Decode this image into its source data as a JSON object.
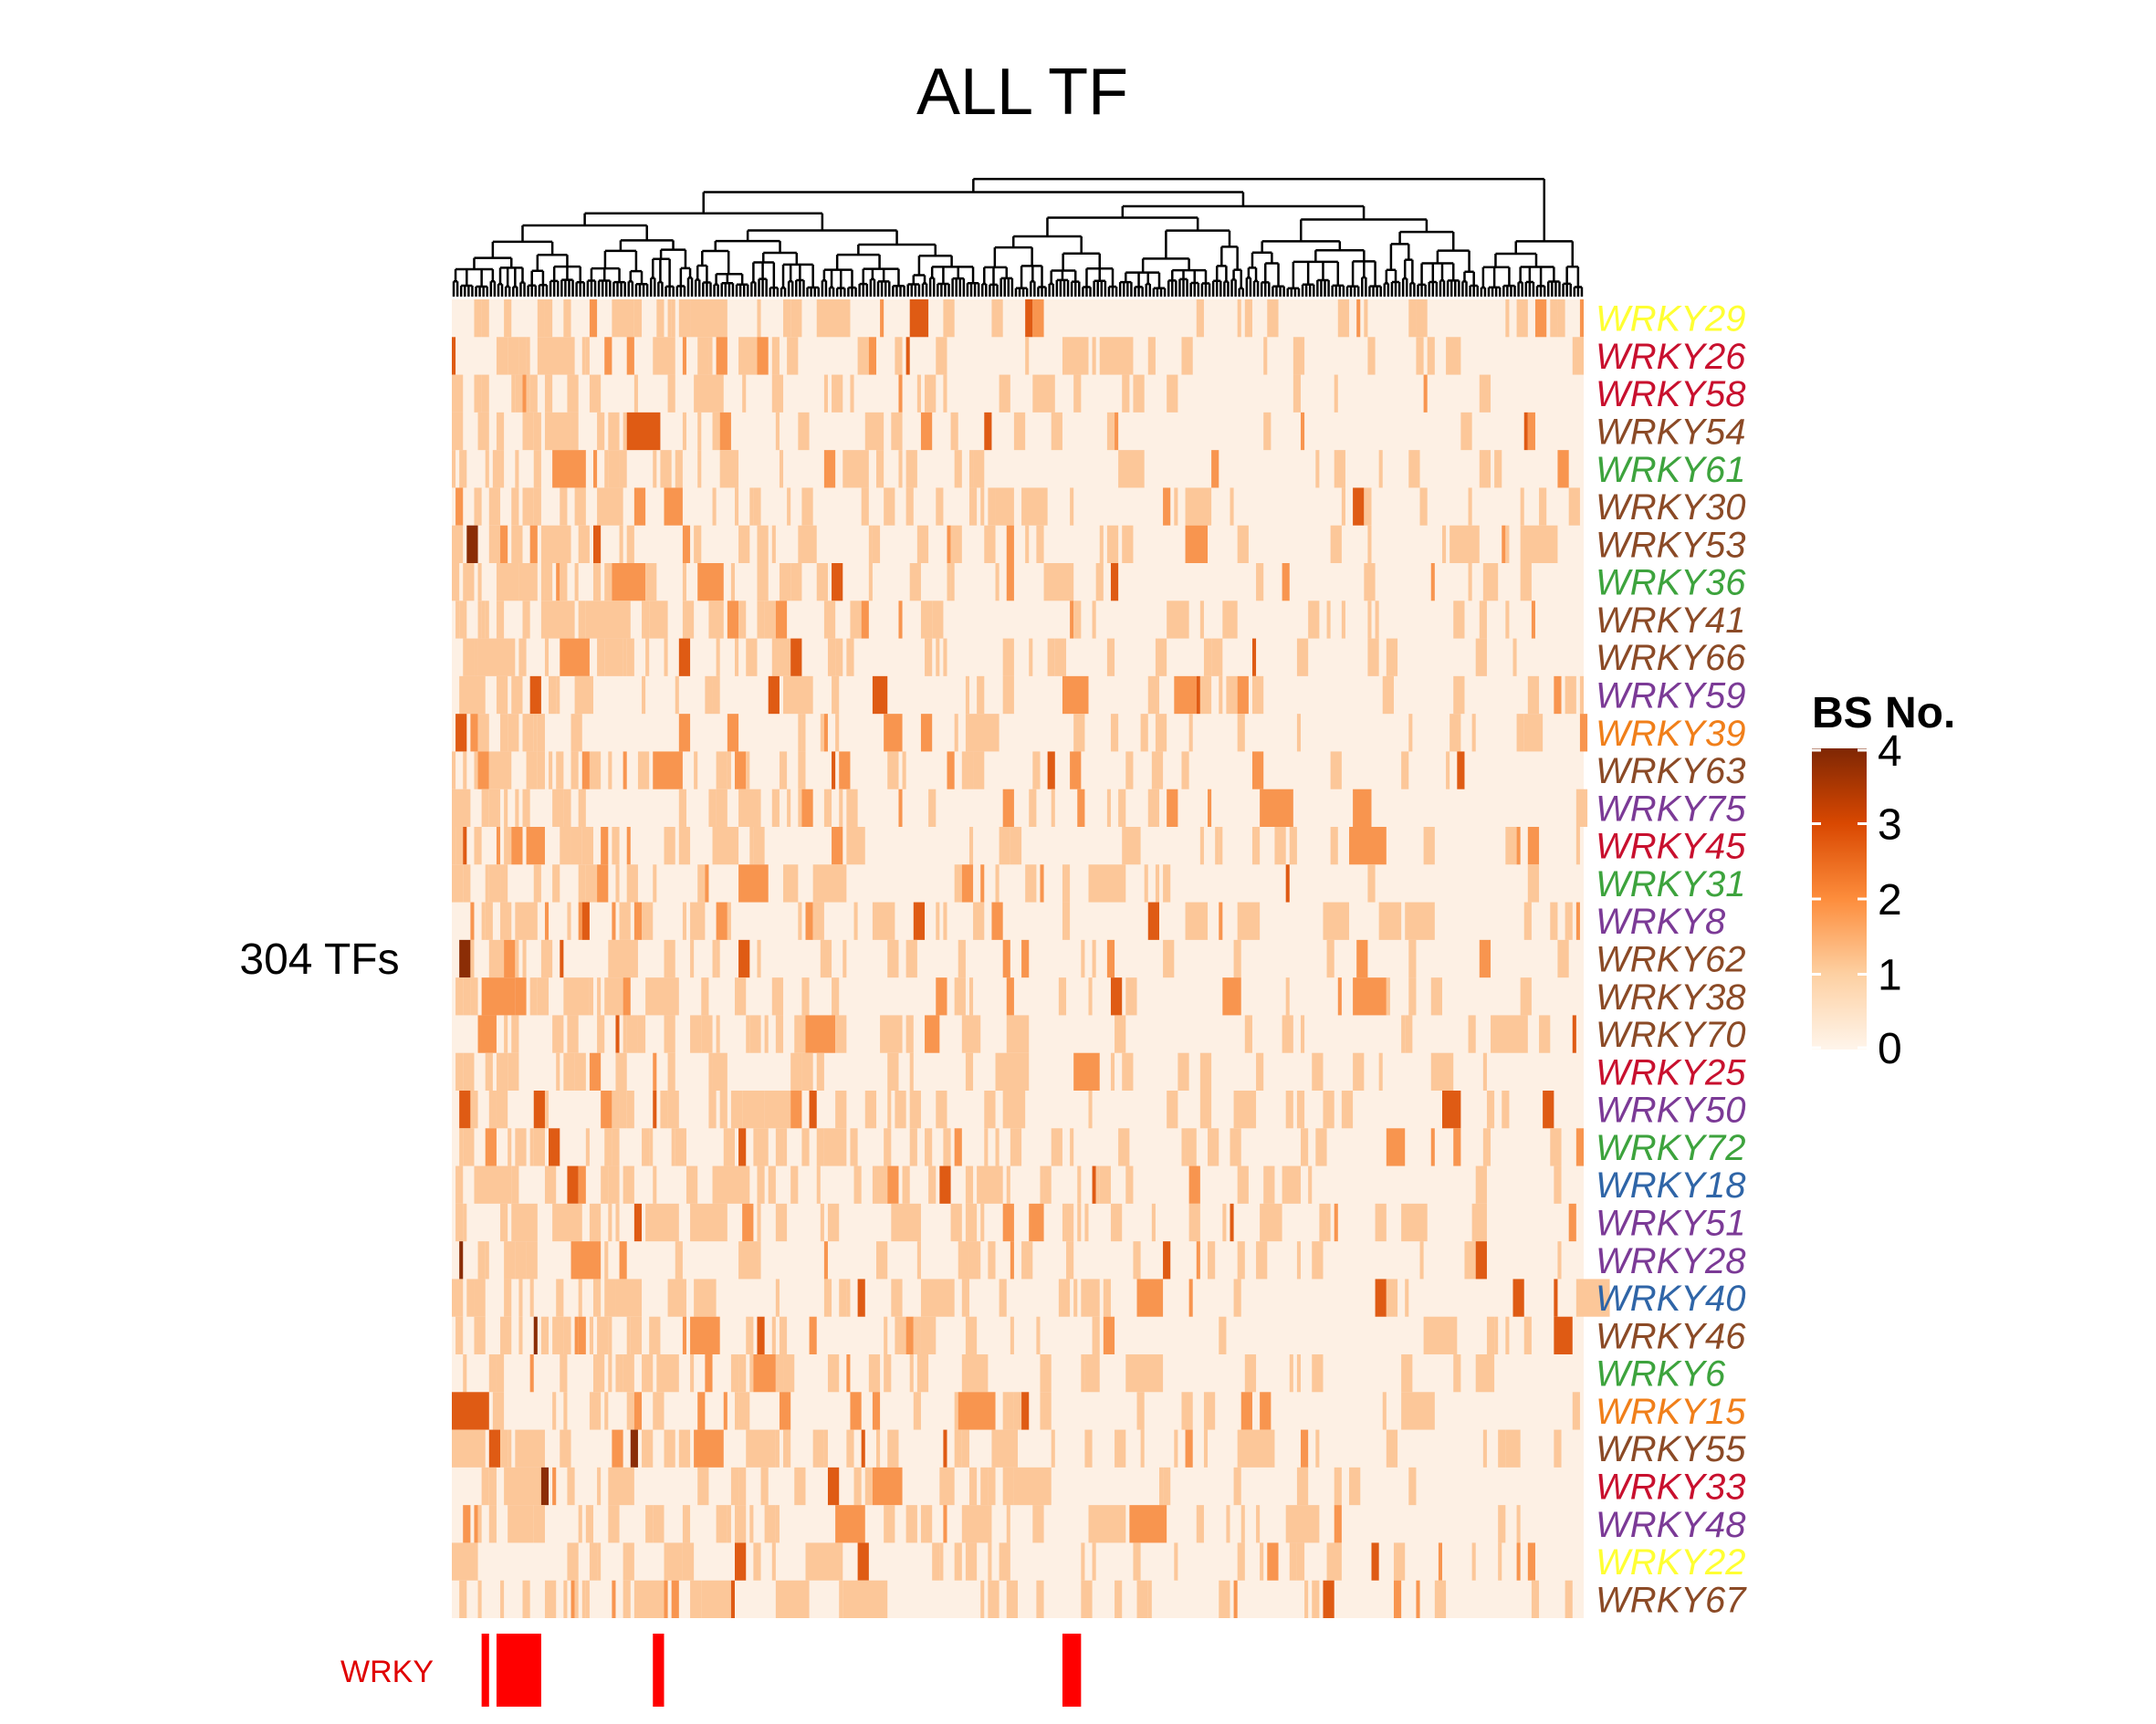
{
  "chart_data": {
    "type": "heatmap",
    "title": "ALL TF",
    "column_label": "304 TFs",
    "n_columns": 304,
    "dendrogram": "top",
    "rows": [
      {
        "name": "WRKY29",
        "color": "#FFFF33"
      },
      {
        "name": "WRKY26",
        "color": "#C8102E"
      },
      {
        "name": "WRKY58",
        "color": "#C8102E"
      },
      {
        "name": "WRKY54",
        "color": "#8B4A26"
      },
      {
        "name": "WRKY61",
        "color": "#3DA33D"
      },
      {
        "name": "WRKY30",
        "color": "#8B4A26"
      },
      {
        "name": "WRKY53",
        "color": "#8B4A26"
      },
      {
        "name": "WRKY36",
        "color": "#3DA33D"
      },
      {
        "name": "WRKY41",
        "color": "#8B4A26"
      },
      {
        "name": "WRKY66",
        "color": "#8B4A26"
      },
      {
        "name": "WRKY59",
        "color": "#7B3A96"
      },
      {
        "name": "WRKY39",
        "color": "#F07F1A"
      },
      {
        "name": "WRKY63",
        "color": "#8B4A26"
      },
      {
        "name": "WRKY75",
        "color": "#7B3A96"
      },
      {
        "name": "WRKY45",
        "color": "#C8102E"
      },
      {
        "name": "WRKY31",
        "color": "#3DA33D"
      },
      {
        "name": "WRKY8",
        "color": "#7B3A96"
      },
      {
        "name": "WRKY62",
        "color": "#8B4A26"
      },
      {
        "name": "WRKY38",
        "color": "#8B4A26"
      },
      {
        "name": "WRKY70",
        "color": "#8B4A26"
      },
      {
        "name": "WRKY25",
        "color": "#C8102E"
      },
      {
        "name": "WRKY50",
        "color": "#7B3A96"
      },
      {
        "name": "WRKY72",
        "color": "#3DA33D"
      },
      {
        "name": "WRKY18",
        "color": "#2F65A7"
      },
      {
        "name": "WRKY51",
        "color": "#7B3A96"
      },
      {
        "name": "WRKY28",
        "color": "#7B3A96"
      },
      {
        "name": "WRKY40",
        "color": "#2F65A7"
      },
      {
        "name": "WRKY46",
        "color": "#8B4A26"
      },
      {
        "name": "WRKY6",
        "color": "#3DA33D"
      },
      {
        "name": "WRKY15",
        "color": "#F07F1A"
      },
      {
        "name": "WRKY55",
        "color": "#8B4A26"
      },
      {
        "name": "WRKY33",
        "color": "#C8102E"
      },
      {
        "name": "WRKY48",
        "color": "#7B3A96"
      },
      {
        "name": "WRKY22",
        "color": "#FFFF33"
      },
      {
        "name": "WRKY67",
        "color": "#8B4A26"
      }
    ],
    "annotation": {
      "label": "WRKY",
      "color": "#FF0000",
      "marked_column_ranges": [
        [
          8,
          9
        ],
        [
          12,
          23
        ],
        [
          54,
          56
        ],
        [
          164,
          168
        ]
      ]
    },
    "legend": {
      "title": "BS No.",
      "ticks": [
        "4",
        "3",
        "2",
        "1",
        "0"
      ],
      "range": [
        0,
        4
      ],
      "colors": [
        "#FFF5EB",
        "#FDD0A2",
        "#FD8D3C",
        "#D94801",
        "#7F2704"
      ],
      "position": "right"
    },
    "cell_colors": [
      "#FDF0E4",
      "#FCC799",
      "#F8954F",
      "#DF5B14",
      "#8B2D06"
    ]
  }
}
